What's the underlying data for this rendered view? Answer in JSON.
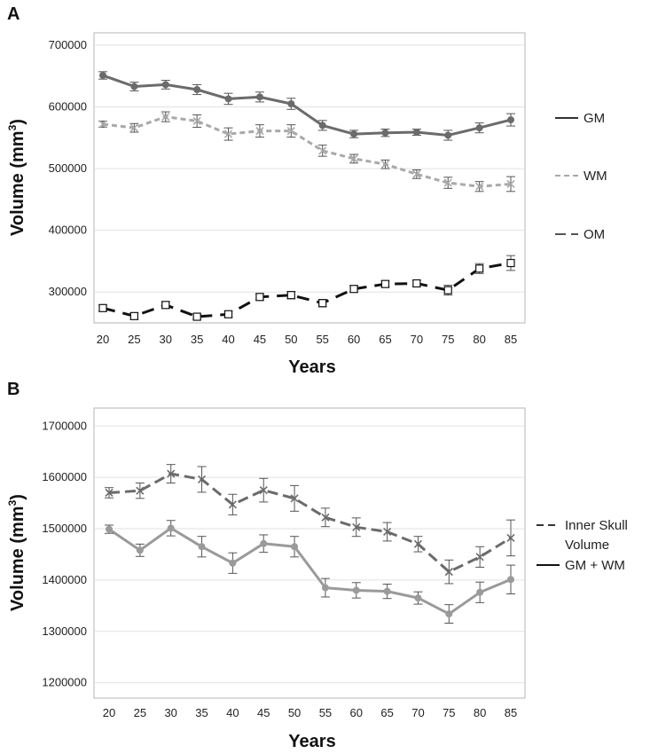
{
  "chart_data": [
    {
      "panel": "A",
      "type": "line",
      "xlabel": "Years",
      "ylabel": "Volume (mm",
      "ylabel_sup": "3",
      "ylabel_close": ")",
      "x": [
        20,
        25,
        30,
        35,
        40,
        45,
        50,
        55,
        60,
        65,
        70,
        75,
        80,
        85
      ],
      "xticks": [
        "20",
        "25",
        "30",
        "35",
        "40",
        "45",
        "50",
        "55",
        "60",
        "65",
        "70",
        "75",
        "80",
        "85"
      ],
      "ylim": [
        250000,
        720000
      ],
      "yticks": [
        300000,
        400000,
        500000,
        600000,
        700000
      ],
      "ytick_labels": [
        "300000",
        "400000",
        "500000",
        "600000",
        "700000"
      ],
      "series": [
        {
          "name": "GM",
          "color": "#6b6b6b",
          "dash": "",
          "marker": "circle",
          "values": [
            651000,
            633000,
            636000,
            628000,
            613000,
            616000,
            605000,
            570000,
            556000,
            558000,
            559000,
            554000,
            566000,
            579000
          ],
          "errors": [
            6000,
            7000,
            7000,
            8000,
            9000,
            8000,
            9000,
            8000,
            6000,
            6000,
            5000,
            8000,
            8000,
            10000
          ]
        },
        {
          "name": "WM",
          "color": "#a9a9a9",
          "dash": "6,4",
          "marker": "x",
          "values": [
            572000,
            566000,
            584000,
            577000,
            556000,
            561000,
            561000,
            529000,
            516000,
            507000,
            491000,
            477000,
            471000,
            475000
          ],
          "errors": [
            5000,
            7000,
            8000,
            10000,
            10000,
            10000,
            10000,
            9000,
            7000,
            7000,
            7000,
            9000,
            8000,
            12000
          ]
        },
        {
          "name": "OM",
          "color": "#111111",
          "dash": "14,9",
          "marker": "square",
          "values": [
            274000,
            261000,
            279000,
            260000,
            264000,
            292000,
            295000,
            282000,
            305000,
            313000,
            314000,
            303000,
            338000,
            347000
          ],
          "errors": [
            5000,
            5000,
            5000,
            4000,
            5000,
            5000,
            6000,
            6000,
            5000,
            5000,
            5000,
            8000,
            8000,
            12000
          ]
        }
      ],
      "legend": [
        {
          "label": "GM",
          "color": "#333333",
          "dash": ""
        },
        {
          "label": "WM",
          "color": "#a9a9a9",
          "dash": "6,4"
        },
        {
          "label": "OM",
          "color": "#555555",
          "dash": "12,6"
        }
      ]
    },
    {
      "panel": "B",
      "type": "line",
      "xlabel": "Years",
      "ylabel": "Volume (mm",
      "ylabel_sup": "3",
      "ylabel_close": ")",
      "x": [
        20,
        25,
        30,
        35,
        40,
        45,
        50,
        55,
        60,
        65,
        70,
        75,
        80,
        85
      ],
      "xticks": [
        "20",
        "25",
        "30",
        "35",
        "40",
        "45",
        "50",
        "55",
        "60",
        "65",
        "70",
        "75",
        "80",
        "85"
      ],
      "ylim": [
        1170000,
        1735000
      ],
      "yticks": [
        1200000,
        1300000,
        1400000,
        1500000,
        1600000,
        1700000
      ],
      "ytick_labels": [
        "1200000",
        "1300000",
        "1400000",
        "1500000",
        "1600000",
        "1700000"
      ],
      "series": [
        {
          "name": "Inner Skull Volume",
          "color": "#6b6b6b",
          "dash": "12,6",
          "marker": "x",
          "values": [
            1570000,
            1574000,
            1607000,
            1596000,
            1547000,
            1575000,
            1559000,
            1522000,
            1503000,
            1494000,
            1470000,
            1416000,
            1445000,
            1482000
          ],
          "errors": [
            10000,
            15000,
            18000,
            25000,
            20000,
            23000,
            25000,
            18000,
            18000,
            18000,
            15000,
            23000,
            20000,
            35000
          ]
        },
        {
          "name": "GM + WM",
          "color": "#9a9a9a",
          "dash": "",
          "marker": "circle",
          "values": [
            1499000,
            1458000,
            1501000,
            1465000,
            1433000,
            1471000,
            1465000,
            1385000,
            1380000,
            1378000,
            1365000,
            1334000,
            1376000,
            1401000
          ],
          "errors": [
            8000,
            12000,
            15000,
            20000,
            20000,
            17000,
            20000,
            18000,
            15000,
            14000,
            12000,
            18000,
            20000,
            28000
          ]
        }
      ],
      "legend": [
        {
          "label": "Inner Skull",
          "label2": "Volume",
          "color": "#333333",
          "dash": "8,5"
        },
        {
          "label": "GM + WM",
          "color": "#111111",
          "dash": ""
        }
      ]
    }
  ]
}
